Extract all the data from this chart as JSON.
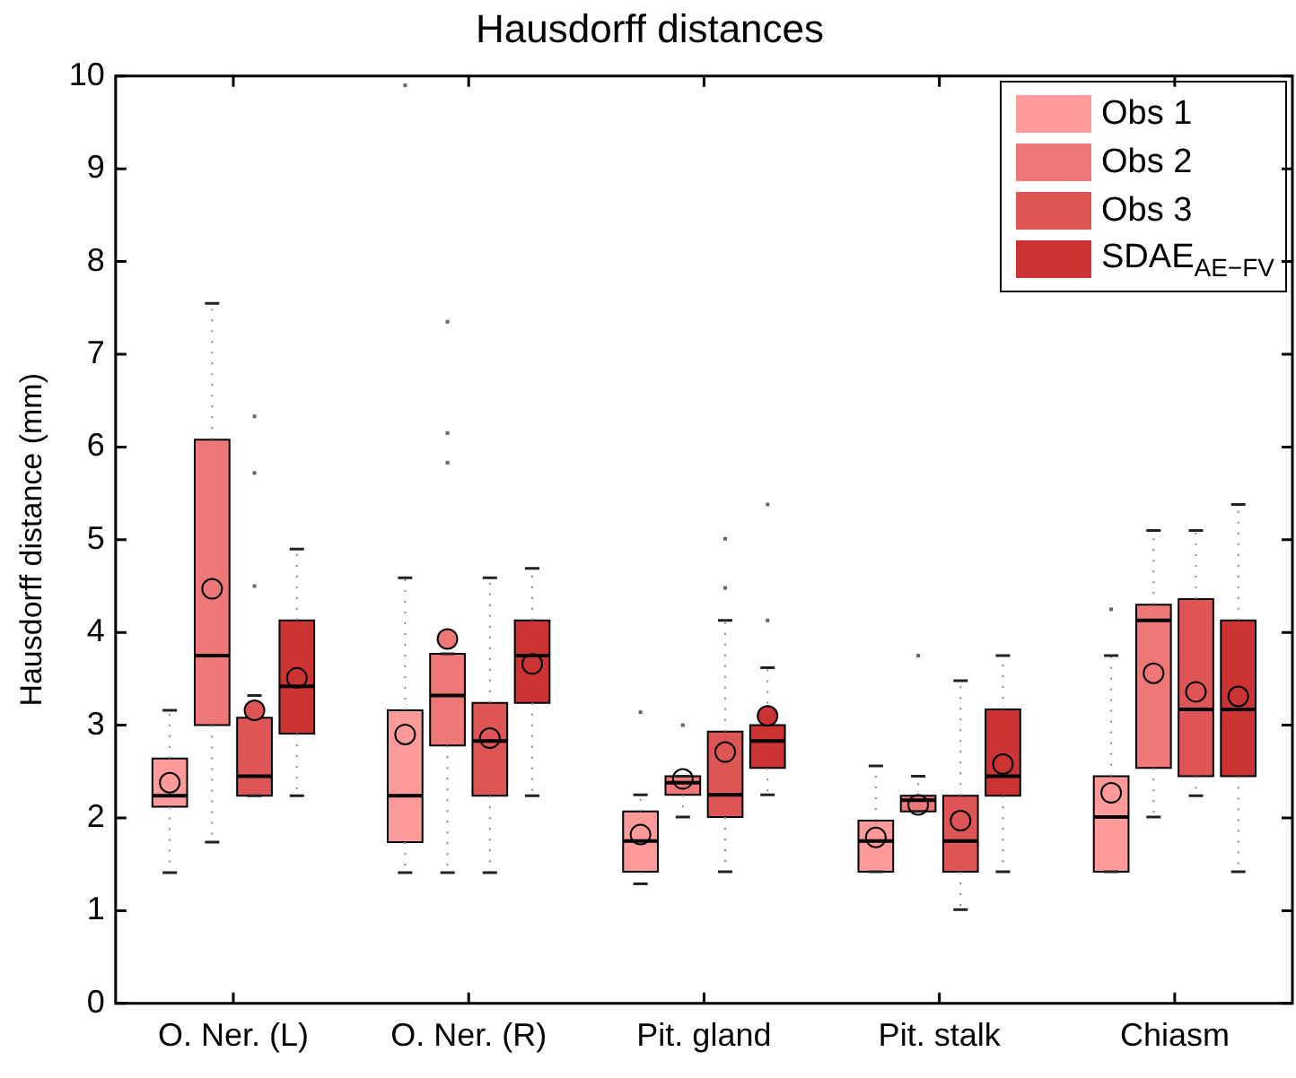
{
  "chart_data": {
    "type": "box",
    "title": "Hausdorff distances",
    "ylabel": "Hausdorff distance (mm)",
    "categories": [
      "O. Ner. (L)",
      "O. Ner. (R)",
      "Pit. gland",
      "Pit. stalk",
      "Chiasm"
    ],
    "ylim": [
      0,
      10
    ],
    "yticks": [
      0,
      1,
      2,
      3,
      4,
      5,
      6,
      7,
      8,
      9,
      10
    ],
    "grid": false,
    "legend": "top right",
    "series": [
      {
        "name": "Obs 1",
        "color": "#fe9a9a",
        "boxes": [
          {
            "low": 1.41,
            "q1": 2.12,
            "median": 2.24,
            "q3": 2.64,
            "high": 3.16,
            "mean": 2.38
          },
          {
            "low": 1.41,
            "q1": 1.74,
            "median": 2.24,
            "q3": 3.16,
            "high": 4.59,
            "mean": 2.9,
            "outliers": [
              9.9
            ]
          },
          {
            "low": 1.29,
            "q1": 1.42,
            "median": 1.75,
            "q3": 2.07,
            "high": 2.25,
            "mean": 1.82,
            "outliers": [
              3.14
            ]
          },
          {
            "low": 1.42,
            "q1": 1.42,
            "median": 1.75,
            "q3": 1.97,
            "high": 2.56,
            "mean": 1.79
          },
          {
            "low": 1.42,
            "q1": 1.42,
            "median": 2.01,
            "q3": 2.45,
            "high": 3.75,
            "mean": 2.27,
            "outliers": [
              4.25
            ]
          }
        ]
      },
      {
        "name": "Obs 2",
        "color": "#ee7777",
        "boxes": [
          {
            "low": 1.74,
            "q1": 3.0,
            "median": 3.75,
            "q3": 6.08,
            "high": 7.55,
            "mean": 4.47
          },
          {
            "low": 1.41,
            "q1": 2.78,
            "median": 3.32,
            "q3": 3.77,
            "high": 3.77,
            "mean": 3.93,
            "outliers": [
              5.83,
              6.15,
              7.35
            ]
          },
          {
            "low": 2.01,
            "q1": 2.25,
            "median": 2.38,
            "q3": 2.45,
            "high": 2.45,
            "mean": 2.42,
            "outliers": [
              3.0
            ]
          },
          {
            "low": 2.07,
            "q1": 2.07,
            "median": 2.19,
            "q3": 2.24,
            "high": 2.45,
            "mean": 2.14,
            "outliers": [
              3.75
            ]
          },
          {
            "low": 2.01,
            "q1": 2.54,
            "median": 4.13,
            "q3": 4.3,
            "high": 5.1,
            "mean": 3.56
          }
        ]
      },
      {
        "name": "Obs 3",
        "color": "#dd5555",
        "boxes": [
          {
            "low": 2.24,
            "q1": 2.24,
            "median": 2.45,
            "q3": 3.08,
            "high": 3.32,
            "mean": 3.16,
            "outliers": [
              4.5,
              5.72,
              6.33
            ]
          },
          {
            "low": 1.41,
            "q1": 2.24,
            "median": 2.83,
            "q3": 3.24,
            "high": 4.59,
            "mean": 2.86
          },
          {
            "low": 1.42,
            "q1": 2.01,
            "median": 2.25,
            "q3": 2.93,
            "high": 4.13,
            "mean": 2.71,
            "outliers": [
              4.48,
              5.01
            ]
          },
          {
            "low": 1.01,
            "q1": 1.42,
            "median": 1.75,
            "q3": 2.24,
            "high": 3.48,
            "mean": 1.97
          },
          {
            "low": 2.24,
            "q1": 2.45,
            "median": 3.17,
            "q3": 4.36,
            "high": 5.1,
            "mean": 3.36
          }
        ]
      },
      {
        "name": "SDAE$_{AE−FV}$",
        "color": "#cc3333",
        "boxes": [
          {
            "low": 2.24,
            "q1": 2.91,
            "median": 3.42,
            "q3": 4.13,
            "high": 4.9,
            "mean": 3.51
          },
          {
            "low": 2.24,
            "q1": 3.24,
            "median": 3.75,
            "q3": 4.13,
            "high": 4.69,
            "mean": 3.66
          },
          {
            "low": 2.25,
            "q1": 2.54,
            "median": 2.83,
            "q3": 3.0,
            "high": 3.62,
            "mean": 3.1,
            "outliers": [
              4.13,
              5.38
            ]
          },
          {
            "low": 1.42,
            "q1": 2.24,
            "median": 2.45,
            "q3": 3.17,
            "high": 3.75,
            "mean": 2.58
          },
          {
            "low": 1.42,
            "q1": 2.45,
            "median": 3.17,
            "q3": 4.13,
            "high": 5.38,
            "mean": 3.31
          }
        ]
      }
    ]
  }
}
